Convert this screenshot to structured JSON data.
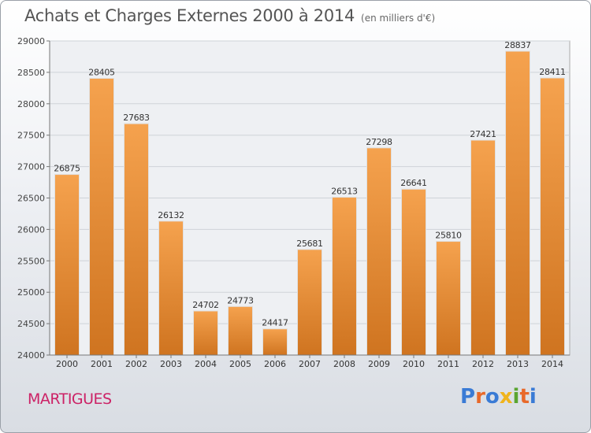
{
  "header": {
    "title": "Achats et Charges Externes 2000 à 2014",
    "unit": "(en milliers d'€)"
  },
  "footer": {
    "commune": "MARTIGUES",
    "logo": "Proxiti"
  },
  "colors": {
    "bar_light": "#f5a24e",
    "bar_dark": "#cf7420",
    "commune": "#cc2266",
    "logo_letters": [
      "#3a7bd5",
      "#e8692a",
      "#3a7bd5",
      "#f0b41c",
      "#5aa531",
      "#e8692a",
      "#3a7bd5"
    ]
  },
  "chart_data": {
    "type": "bar",
    "categories": [
      "2000",
      "2001",
      "2002",
      "2003",
      "2004",
      "2005",
      "2006",
      "2007",
      "2008",
      "2009",
      "2010",
      "2011",
      "2012",
      "2013",
      "2014"
    ],
    "values": [
      26875,
      28405,
      27683,
      26132,
      24702,
      24773,
      24417,
      25681,
      26513,
      27298,
      26641,
      25810,
      27421,
      28837,
      28411
    ],
    "title": "Achats et Charges Externes 2000 à 2014",
    "ylim": [
      24000,
      29000
    ],
    "yticks": [
      24000,
      24500,
      25000,
      25500,
      26000,
      26500,
      27000,
      27500,
      28000,
      28500,
      29000
    ],
    "grid": true,
    "data_labels": true
  }
}
